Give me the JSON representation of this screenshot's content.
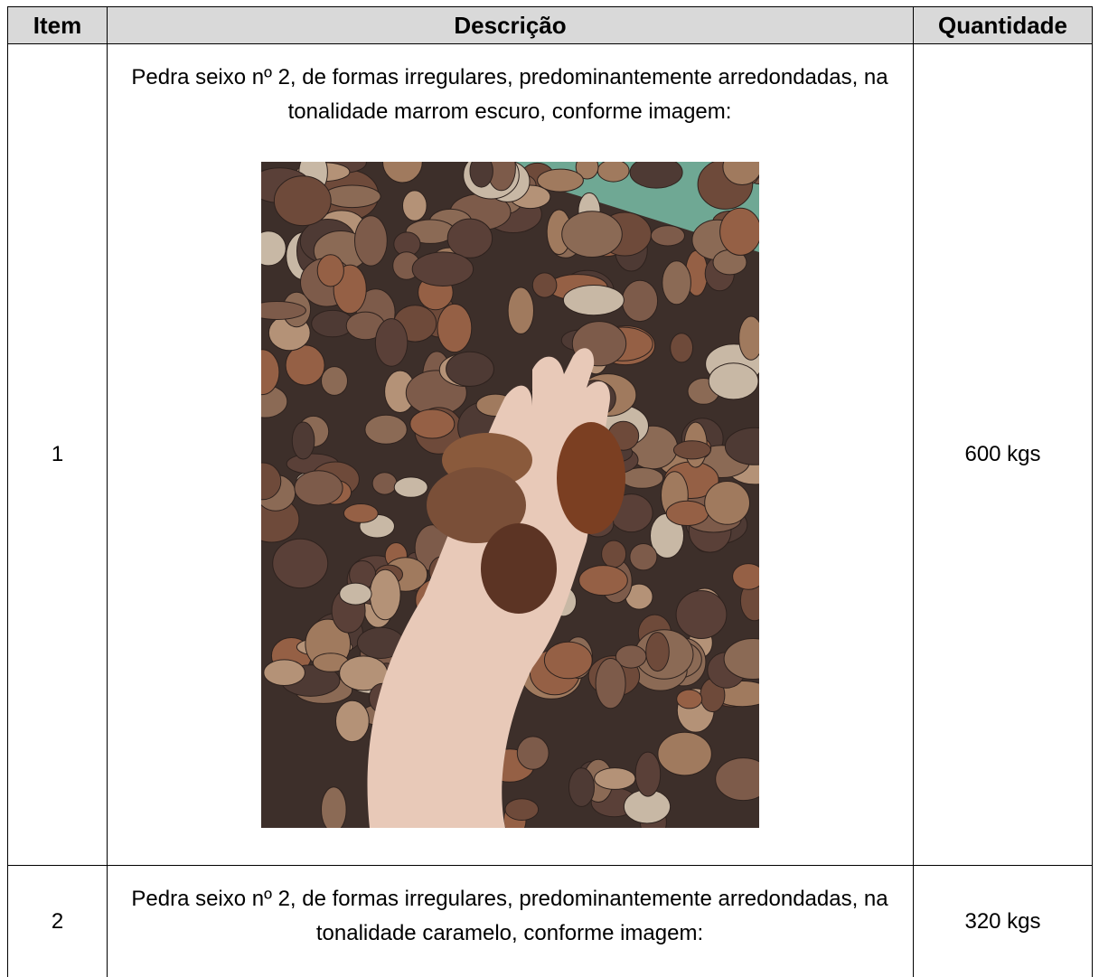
{
  "header": {
    "item": "Item",
    "description": "Descrição",
    "quantity": "Quantidade"
  },
  "rows": [
    {
      "item": "1",
      "description": "Pedra seixo nº 2, de formas irregulares, predominantemente arredondadas, na tonalidade marrom escuro, conforme imagem:",
      "quantity": "600 kgs"
    },
    {
      "item": "2",
      "description": "Pedra seixo nº 2, de formas irregulares, predominantemente arredondadas, na tonalidade caramelo, conforme imagem:",
      "quantity": "320 kgs"
    }
  ]
}
